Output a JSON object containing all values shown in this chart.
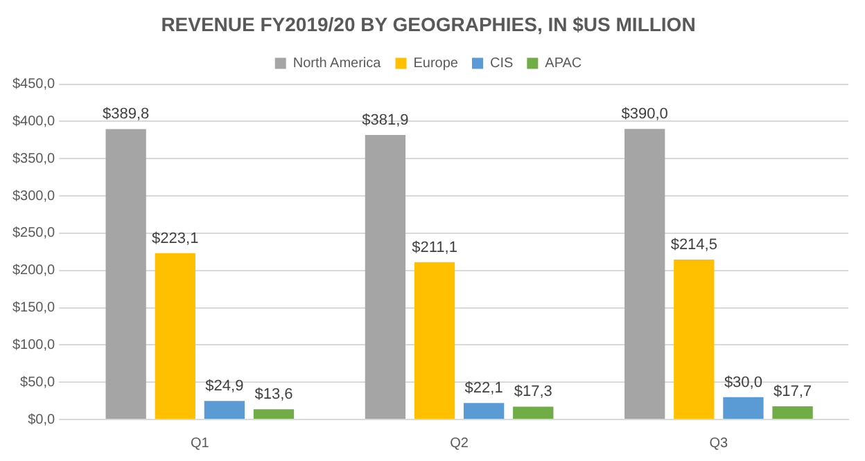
{
  "chart_data": {
    "type": "bar",
    "title": "REVENUE FY2019/20 BY GEOGRAPHIES, IN $US MILLION",
    "categories": [
      "Q1",
      "Q2",
      "Q3"
    ],
    "series": [
      {
        "name": "North America",
        "color": "#a5a5a5",
        "values": [
          389.8,
          381.9,
          390.0
        ],
        "value_labels": [
          "$389,8",
          "$381,9",
          "$390,0"
        ]
      },
      {
        "name": "Europe",
        "color": "#ffc000",
        "values": [
          223.1,
          211.1,
          214.5
        ],
        "value_labels": [
          "$223,1",
          "$211,1",
          "$214,5"
        ]
      },
      {
        "name": "CIS",
        "color": "#5b9bd5",
        "values": [
          24.9,
          22.1,
          30.0
        ],
        "value_labels": [
          "$24,9",
          "$22,1",
          "$30,0"
        ]
      },
      {
        "name": "APAC",
        "color": "#70ad47",
        "values": [
          13.6,
          17.3,
          17.7
        ],
        "value_labels": [
          "$13,6",
          "$17,3",
          "$17,7"
        ]
      }
    ],
    "ylim": [
      0,
      450
    ],
    "yticks": [
      {
        "value": 0,
        "label": "$0,0"
      },
      {
        "value": 50,
        "label": "$50,0"
      },
      {
        "value": 100,
        "label": "$100,0"
      },
      {
        "value": 150,
        "label": "$150,0"
      },
      {
        "value": 200,
        "label": "$200,0"
      },
      {
        "value": 250,
        "label": "$250,0"
      },
      {
        "value": 300,
        "label": "$300,0"
      },
      {
        "value": 350,
        "label": "$350,0"
      },
      {
        "value": 400,
        "label": "$400,0"
      },
      {
        "value": 450,
        "label": "$450,0"
      }
    ],
    "grid": "y",
    "legend": "top"
  }
}
